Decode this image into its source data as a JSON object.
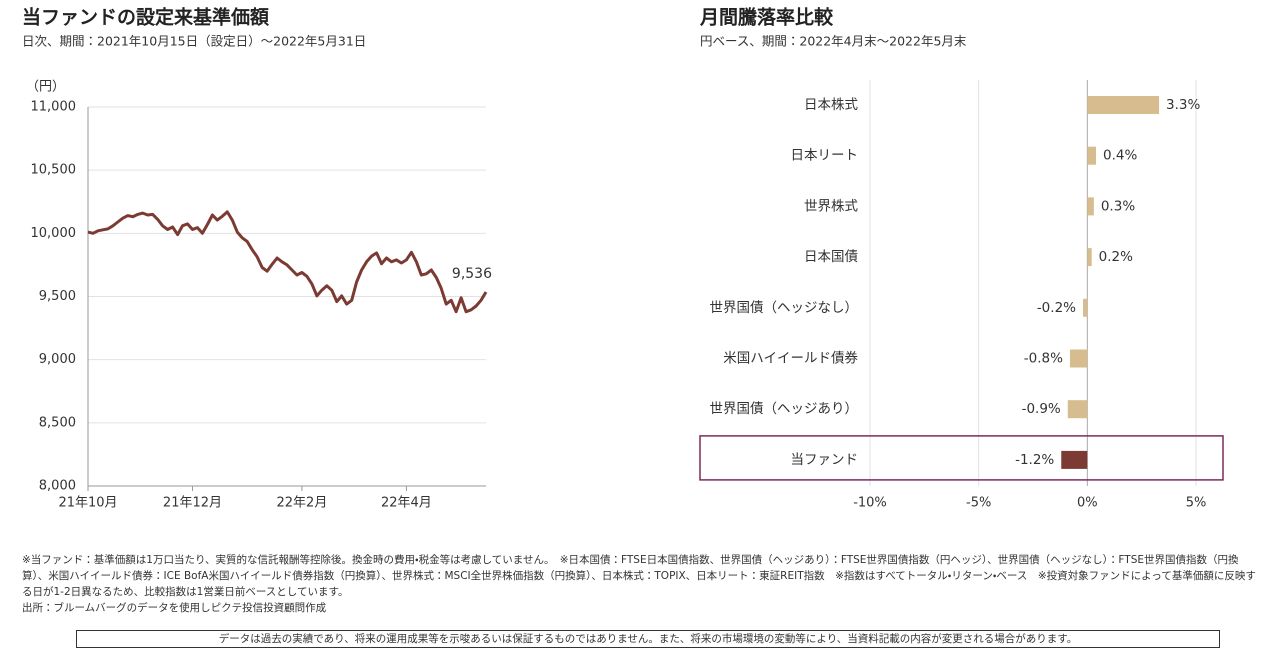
{
  "chart_data": [
    {
      "type": "line",
      "title": "当ファンドの設定来基準価額",
      "subtitle": "日次、期間：2021年10月15日（設定日）～2022年5月31日",
      "ylabel": "（円）",
      "color": "#7b3b32",
      "categories": [
        "21年10月",
        null,
        null,
        null,
        null,
        null,
        null,
        null,
        null,
        null,
        null,
        null,
        null,
        null,
        null,
        null,
        null,
        null,
        null,
        null,
        null,
        "21年12月",
        null,
        null,
        null,
        null,
        null,
        null,
        null,
        null,
        null,
        null,
        null,
        null,
        null,
        null,
        null,
        null,
        null,
        null,
        null,
        null,
        null,
        "22年2月",
        null,
        null,
        null,
        null,
        null,
        null,
        null,
        null,
        null,
        null,
        null,
        null,
        null,
        null,
        null,
        null,
        null,
        null,
        null,
        null,
        "22年4月",
        null,
        null,
        null,
        null,
        null,
        null,
        null,
        null,
        null,
        null,
        null,
        null,
        null,
        null,
        null,
        null
      ],
      "values": [
        10010,
        10000,
        10020,
        10028,
        10035,
        10060,
        10090,
        10120,
        10140,
        10132,
        10150,
        10160,
        10145,
        10150,
        10110,
        10060,
        10030,
        10050,
        9990,
        10060,
        10075,
        10030,
        10045,
        10000,
        10070,
        10145,
        10105,
        10135,
        10170,
        10105,
        10010,
        9965,
        9935,
        9870,
        9815,
        9730,
        9700,
        9755,
        9805,
        9775,
        9750,
        9710,
        9670,
        9690,
        9660,
        9600,
        9505,
        9550,
        9585,
        9550,
        9460,
        9505,
        9440,
        9470,
        9615,
        9710,
        9775,
        9820,
        9845,
        9760,
        9805,
        9775,
        9790,
        9765,
        9790,
        9850,
        9775,
        9670,
        9680,
        9710,
        9650,
        9565,
        9440,
        9470,
        9380,
        9490,
        9380,
        9395,
        9425,
        9470,
        9536
      ],
      "value_labels": [
        null,
        null,
        null,
        null,
        null,
        null,
        null,
        null,
        null,
        null,
        null,
        null,
        null,
        null,
        null,
        null,
        null,
        null,
        null,
        null,
        null,
        null,
        null,
        null,
        null,
        null,
        null,
        null,
        null,
        null,
        null,
        null,
        null,
        null,
        null,
        null,
        null,
        null,
        null,
        null,
        null,
        null,
        null,
        null,
        null,
        null,
        null,
        null,
        null,
        null,
        null,
        null,
        null,
        null,
        null,
        null,
        null,
        null,
        null,
        null,
        null,
        null,
        null,
        null,
        null,
        null,
        null,
        null,
        null,
        null,
        null,
        null,
        null,
        null,
        null,
        null,
        null,
        null,
        null,
        null,
        "9,536"
      ],
      "ylim": [
        8000,
        11000
      ],
      "yticks": [
        {
          "value": 8000,
          "label": "8,000"
        },
        {
          "value": 8500,
          "label": "8,500"
        },
        {
          "value": 9000,
          "label": "9,000"
        },
        {
          "value": 9500,
          "label": "9,500"
        },
        {
          "value": 10000,
          "label": "10,000"
        },
        {
          "value": 10500,
          "label": "10,500"
        },
        {
          "value": 11000,
          "label": "11,000"
        }
      ],
      "grid": true
    },
    {
      "type": "hbar",
      "title": "月間騰落率比較",
      "subtitle": "円ベース、期間：2022年4月末～2022年5月末",
      "categories": [
        "日本株式",
        "日本リート",
        "世界株式",
        "日本国債",
        "世界国債（ヘッジなし）",
        "米国ハイイールド債券",
        "世界国債（ヘッジあり）",
        "当ファンド"
      ],
      "values": [
        3.3,
        0.4,
        0.3,
        0.2,
        -0.2,
        -0.8,
        -0.9,
        -1.2
      ],
      "value_labels": [
        "3.3%",
        "0.4%",
        "0.3%",
        "0.2%",
        "-0.2%",
        "-0.8%",
        "-0.9%",
        "-1.2%"
      ],
      "colors": [
        "#d6bc8e",
        "#d6bc8e",
        "#d6bc8e",
        "#d6bc8e",
        "#d6bc8e",
        "#d6bc8e",
        "#d6bc8e",
        "#7b3b32"
      ],
      "highlight_index": 7,
      "xlim": [
        -10,
        5
      ],
      "xticks": [
        {
          "value": -10,
          "label": "-10%"
        },
        {
          "value": -5,
          "label": "-5%"
        },
        {
          "value": 0,
          "label": "0%"
        },
        {
          "value": 5,
          "label": "5%"
        }
      ],
      "grid": true
    }
  ],
  "notes": [
    "※当ファンド：基準価額は1万口当たり、実質的な信託報酬等控除後。換金時の費用・税金等は考慮していません。　※日本国債：FTSE日本国債指数、世界国債（ヘッジあり）：FTSE世界国債指数（円ヘッジ）、世界国債（ヘッジなし）：FTSE世界国債指数（円換算）、米国ハイイールド債券：ICE BofA米国ハイイールド債券指数（円換算）、世界株式：MSCI全世界株価指数（円換算）、日本株式：TOPIX、日本リート：東証REIT指数　※指数はすべてトータル・リターン・ベース　※投資対象ファンドによって基準価額に反映する日が1-2日異なるため、比較指数は1営業日前ベースとしています。",
    "出所：ブルームバーグのデータを使用しピクテ投信投資顧問作成"
  ],
  "disclaimer": "データは過去の実績であり、将来の運用成果等を示唆あるいは保証するものではありません。また、将来の市場環境の変動等により、当資料記載の内容が変更される場合があります。"
}
